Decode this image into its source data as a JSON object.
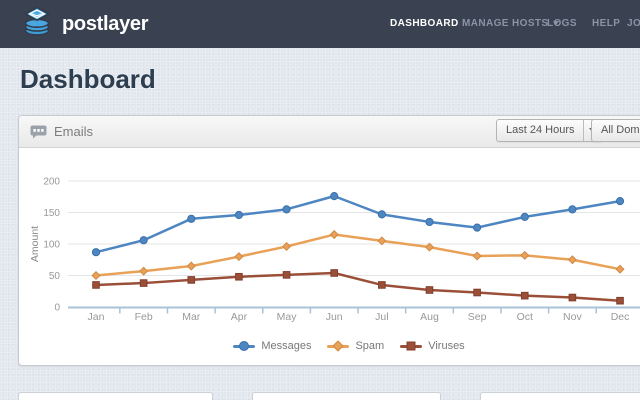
{
  "brand": {
    "name": "postlayer",
    "logo_icon": "mail-stack-icon",
    "logo_color": "#45a3de"
  },
  "nav": {
    "items": [
      {
        "label": "DASHBOARD",
        "active": true,
        "has_dropdown": false
      },
      {
        "label": "MANAGE HOSTS",
        "active": false,
        "has_dropdown": true
      },
      {
        "label": "LOGS",
        "active": false,
        "has_dropdown": false
      },
      {
        "label": "HELP",
        "active": false,
        "has_dropdown": false
      },
      {
        "label": "JOHN",
        "active": false,
        "has_dropdown": false,
        "truncated_by_viewport": true
      }
    ]
  },
  "page": {
    "title": "Dashboard"
  },
  "panel": {
    "title": "Emails",
    "title_icon": "chat-bubble-icon",
    "filters": {
      "time_range": "Last 24 Hours",
      "domain": "All Domains"
    }
  },
  "chart_data": {
    "type": "line",
    "title": "Emails",
    "categories": [
      "Jan",
      "Feb",
      "Mar",
      "Apr",
      "May",
      "Jun",
      "Jul",
      "Aug",
      "Sep",
      "Oct",
      "Nov",
      "Dec"
    ],
    "series": [
      {
        "name": "Messages",
        "color": "#4e86c2",
        "marker_edge": "#3a70a8",
        "marker": "circle",
        "values": [
          87,
          106,
          140,
          146,
          155,
          176,
          147,
          135,
          126,
          143,
          155,
          168
        ]
      },
      {
        "name": "Spam",
        "color": "#e9a158",
        "marker_edge": "#cf8a43",
        "marker": "diamond",
        "values": [
          50,
          57,
          65,
          80,
          96,
          115,
          105,
          95,
          81,
          82,
          75,
          60
        ]
      },
      {
        "name": "Viruses",
        "color": "#9b4f38",
        "marker_edge": "#7f3f2c",
        "marker": "square",
        "values": [
          35,
          38,
          43,
          48,
          51,
          54,
          35,
          27,
          23,
          18,
          15,
          10
        ]
      }
    ],
    "xlabel": "",
    "ylabel": "Amount",
    "yticks": [
      0,
      50,
      100,
      150,
      200
    ],
    "ylim": [
      0,
      200
    ],
    "grid": true,
    "legend_position": "bottom",
    "axis_color": "#a9c2d9",
    "grid_color": "#e5e5e5",
    "tick_label_color": "#999999"
  },
  "colors": {
    "navbar_bg": "#3a4150",
    "nav_inactive": "#8a94a4",
    "nav_active": "#ffffff",
    "page_bg": "#e2e7ee",
    "heading": "#2d3e50",
    "panel_header_text": "#7d7d7d"
  }
}
